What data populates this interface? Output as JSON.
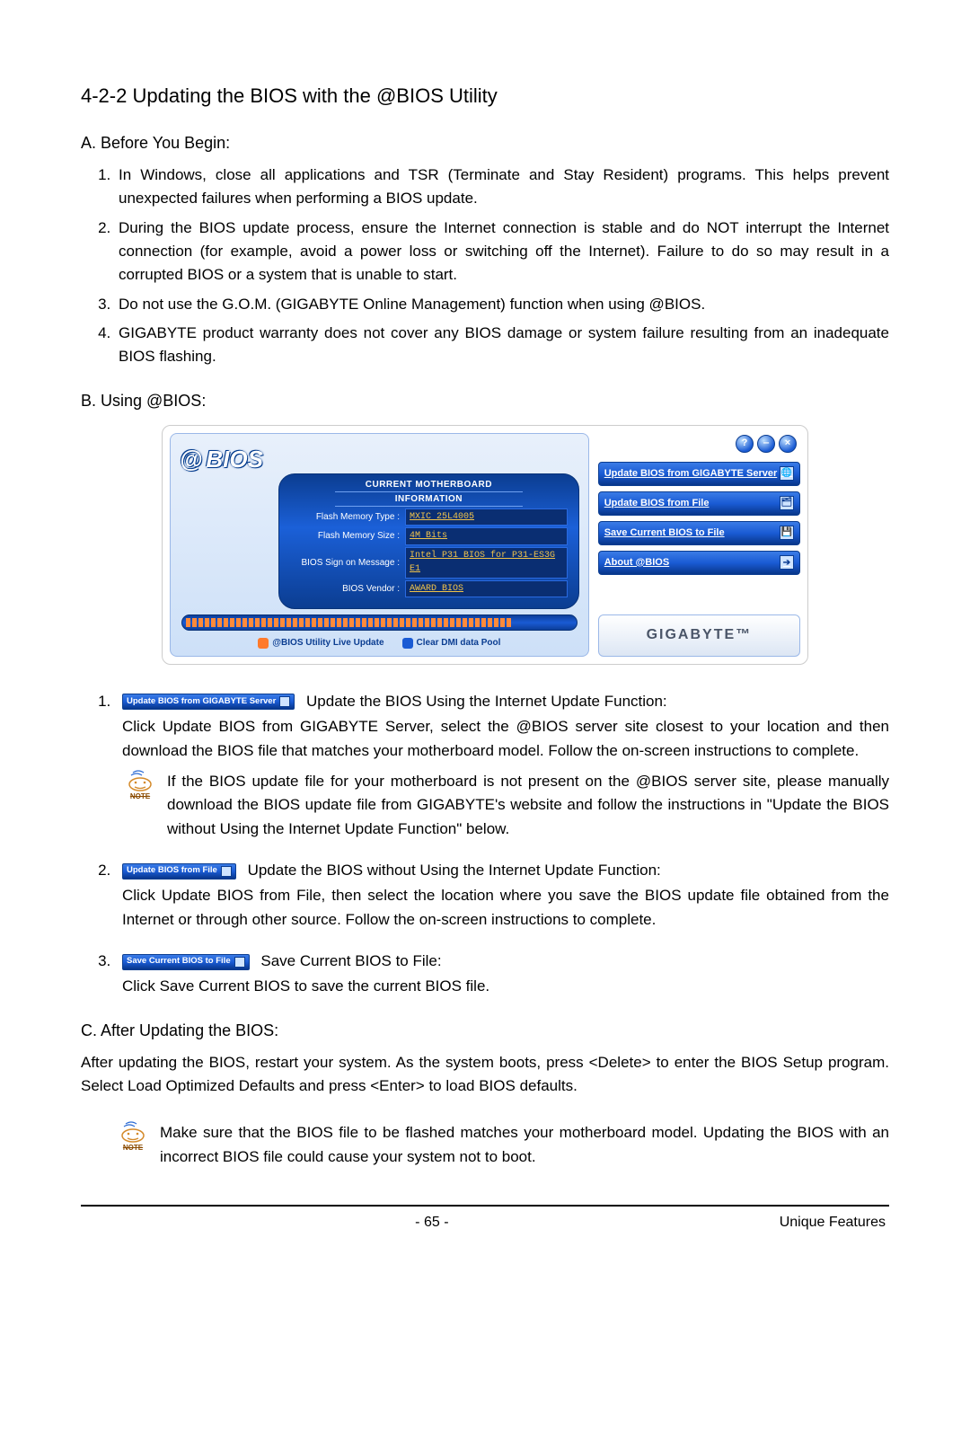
{
  "heading": "4-2-2   Updating the BIOS with the @BIOS Utility",
  "sectionA": {
    "title": "A. Before You Begin:",
    "items": [
      "In Windows, close all applications and TSR (Terminate and Stay Resident) programs. This helps prevent unexpected failures when performing a BIOS update.",
      "During the BIOS update process, ensure the Internet connection is stable and do NOT interrupt the Internet connection (for example, avoid a power loss or switching off the Internet). Failure to do so may result in a corrupted BIOS or a system that is unable to start.",
      "Do not use the G.O.M. (GIGABYTE Online Management) function when using @BIOS.",
      "GIGABYTE product warranty does not cover any BIOS damage or system failure resulting from an inadequate BIOS flashing."
    ]
  },
  "sectionB": {
    "title": "B. Using @BIOS:"
  },
  "app": {
    "logo_at": "@",
    "logo_text": "BIOS",
    "info_title_l1": "CURRENT MOTHERBOARD",
    "info_title_l2": "INFORMATION",
    "rows": [
      {
        "k": "Flash Memory Type :",
        "v": "MXIC 25L4005"
      },
      {
        "k": "Flash Memory Size :",
        "v": "4M Bits"
      },
      {
        "k": "BIOS Sign on Message :",
        "v": "Intel P31 BIOS for P31-ES3G E1"
      },
      {
        "k": "BIOS Vendor :",
        "v": "AWARD BIOS"
      }
    ],
    "live_update": "@BIOS Utility Live Update",
    "clear_dmi": "Clear DMI data Pool",
    "tick_count": 52,
    "tick_color": "#ff8a3a",
    "win_min": "‒",
    "win_help": "?",
    "win_close": "×",
    "options": [
      {
        "label": "Update BIOS from GIGABYTE Server",
        "icon": "🌐"
      },
      {
        "label": "Update BIOS from File",
        "icon": "🗂"
      },
      {
        "label": "Save Current BIOS to File",
        "icon": "💾"
      },
      {
        "label": "About @BIOS",
        "icon": "➔"
      }
    ],
    "brand": "GIGABYTE™",
    "colors": {
      "panel_bg": "#0b3d91",
      "value_color": "#f0c34a",
      "button_grad_top": "#3a7be6",
      "button_grad_bot": "#08368a"
    }
  },
  "steps": [
    {
      "btn": "Update BIOS from GIGABYTE Server",
      "head": " Update the BIOS Using the Internet Update Function:",
      "body_pre": "Click ",
      "body_bold": "Update BIOS from GIGABYTE Server",
      "body_post": ", select the @BIOS server site closest to your location and then download the BIOS file that matches your motherboard model. Follow the on-screen instructions to complete.",
      "note": "If the BIOS update file for your motherboard is not present on the @BIOS server site, please manually download the BIOS update file from GIGABYTE's website and follow the instructions in \"Update the BIOS without Using the Internet Update Function\" below."
    },
    {
      "btn": "Update BIOS from File",
      "head": " Update the BIOS without Using the Internet Update Function:",
      "body_pre": "Click ",
      "body_bold": "Update BIOS from File",
      "body_post": ", then select the location where you save the BIOS update file obtained from the Internet or through other source. Follow the on-screen instructions to complete."
    },
    {
      "btn": "Save Current BIOS to File",
      "head": " Save Current BIOS to File:",
      "body_pre": "Click ",
      "body_bold": "Save Current BIOS",
      "body_post": " to save the current BIOS file."
    }
  ],
  "sectionC": {
    "title": "C. After Updating the BIOS:",
    "text_pre": "After updating the BIOS, restart your system. As the system boots, press <Delete> to enter the BIOS Setup program. Select ",
    "text_bold": "Load Optimized Defaults",
    "text_post": " and press <Enter> to load BIOS defaults.",
    "note": "Make sure that the BIOS file to be flashed matches your motherboard model. Updating the BIOS with an incorrect BIOS file could cause your system not to boot."
  },
  "note_label": "NOTE",
  "footer": {
    "page": "- 65 -",
    "section": "Unique Features"
  }
}
